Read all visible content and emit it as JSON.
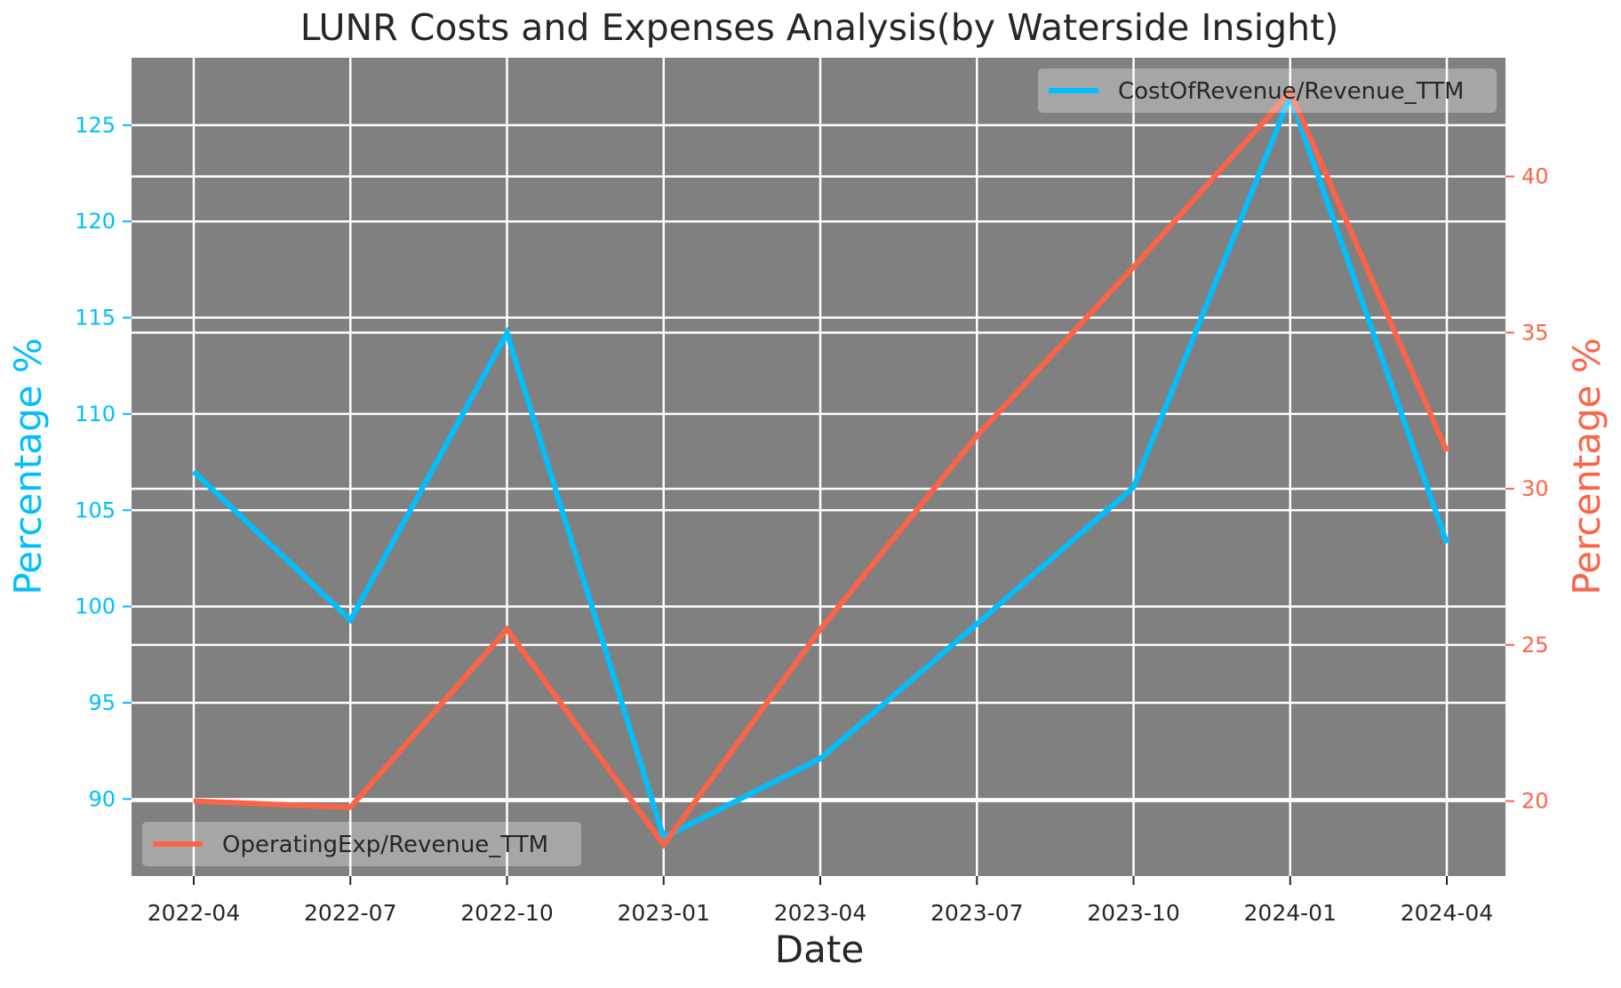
{
  "chart_data": {
    "type": "line",
    "title": "LUNR Costs and Expenses Analysis(by Waterside Insight)",
    "xlabel": "Date",
    "ylabel_left": "Percentage %",
    "ylabel_right": "Percentage %",
    "categories": [
      "2022-04",
      "2022-07",
      "2022-10",
      "2023-01",
      "2023-04",
      "2023-07",
      "2023-10",
      "2024-01",
      "2024-04"
    ],
    "left_axis": {
      "ylim": [
        86.0,
        128.5
      ],
      "ticks": [
        90,
        95,
        100,
        105,
        110,
        115,
        120,
        125
      ],
      "tick_labels": [
        "90",
        "95",
        "100",
        "105",
        "110",
        "115",
        "120",
        "125"
      ]
    },
    "right_axis": {
      "ylim": [
        17.6,
        43.8
      ],
      "ticks": [
        20,
        25,
        30,
        35,
        40
      ],
      "tick_labels": [
        "20",
        "25",
        "30",
        "35",
        "40"
      ]
    },
    "series": [
      {
        "name": "CostOfRevenue/Revenue_TTM",
        "axis": "left",
        "color": "#00bfff",
        "values": [
          107.0,
          99.3,
          114.2,
          88.0,
          92.1,
          99.1,
          106.2,
          126.5,
          103.3
        ],
        "legend_position": "top-right"
      },
      {
        "name": "OperatingExp/Revenue_TTM",
        "axis": "right",
        "color": "#ff6347",
        "values": [
          20.0,
          19.8,
          25.5,
          18.6,
          25.5,
          31.7,
          37.1,
          42.7,
          31.2
        ],
        "legend_position": "bottom-left"
      }
    ],
    "plot_background": "#808080",
    "grid": true
  }
}
